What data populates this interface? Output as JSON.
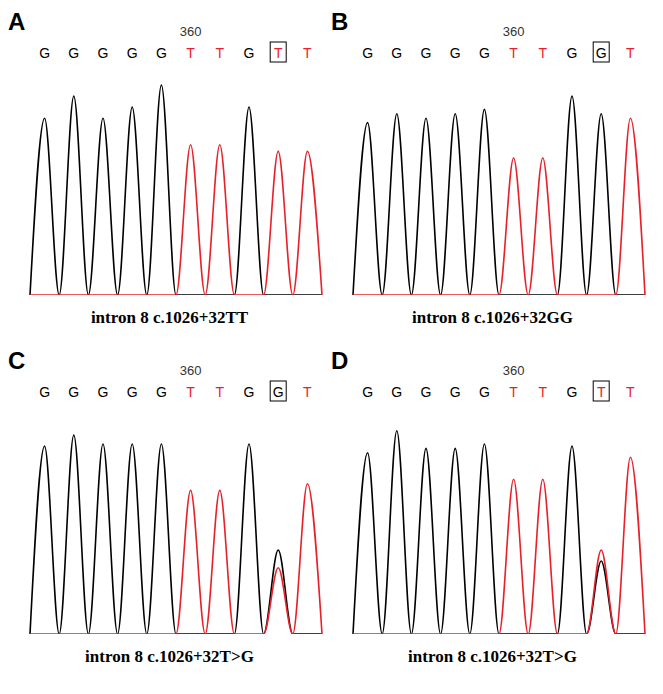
{
  "chart_data": [
    {
      "type": "line",
      "panel_label": "A",
      "title": "intron 8 c.1026+32TT",
      "categories": [
        null,
        "G",
        null,
        "G",
        null,
        "G",
        null,
        "G",
        null,
        "G",
        null,
        "T",
        null,
        "T",
        null,
        "G",
        null,
        "T",
        null,
        "T",
        null
      ],
      "series": [
        {
          "name": "G",
          "color": "#000000",
          "values": [
            0,
            80,
            0,
            90,
            0,
            80,
            0,
            85,
            0,
            95,
            0,
            0,
            0,
            0,
            0,
            85,
            0,
            0,
            0,
            0,
            0
          ]
        },
        {
          "name": "T",
          "color": "#e8202a",
          "values": [
            0,
            0,
            0,
            0,
            0,
            0,
            0,
            0,
            0,
            0,
            0,
            68,
            0,
            68,
            0,
            0,
            0,
            65,
            0,
            65,
            0
          ]
        }
      ],
      "ylim": [
        0,
        100
      ],
      "tick_labels": "x",
      "annotations": [
        {
          "text": "360",
          "at": 11
        }
      ],
      "boxed": 17
    },
    {
      "type": "line",
      "panel_label": "B",
      "title": "intron 8 c.1026+32GG",
      "categories": [
        null,
        "G",
        null,
        "G",
        null,
        "G",
        null,
        "G",
        null,
        "G",
        null,
        "T",
        null,
        "T",
        null,
        "G",
        null,
        "G",
        null,
        "T",
        null
      ],
      "series": [
        {
          "name": "G",
          "color": "#000000",
          "values": [
            0,
            78,
            0,
            82,
            0,
            80,
            0,
            82,
            0,
            84,
            0,
            0,
            0,
            0,
            0,
            90,
            0,
            82,
            0,
            0,
            0
          ]
        },
        {
          "name": "T",
          "color": "#e8202a",
          "values": [
            0,
            0,
            0,
            0,
            0,
            0,
            0,
            0,
            0,
            0,
            0,
            62,
            0,
            62,
            0,
            0,
            0,
            0,
            0,
            80,
            0
          ]
        }
      ],
      "ylim": [
        0,
        100
      ],
      "tick_labels": "x",
      "annotations": [
        {
          "text": "360",
          "at": 11
        }
      ],
      "boxed": 17
    },
    {
      "type": "line",
      "panel_label": "C",
      "title": "intron 8 c.1026+32T>G",
      "categories": [
        null,
        "G",
        null,
        "G",
        null,
        "G",
        null,
        "G",
        null,
        "G",
        null,
        "T",
        null,
        "T",
        null,
        "G",
        null,
        "G",
        null,
        "T",
        null
      ],
      "series": [
        {
          "name": "G",
          "color": "#000000",
          "values": [
            0,
            85,
            0,
            90,
            0,
            86,
            0,
            86,
            0,
            86,
            0,
            0,
            0,
            0,
            0,
            86,
            0,
            38,
            0,
            0,
            0
          ]
        },
        {
          "name": "T",
          "color": "#e8202a",
          "values": [
            0,
            0,
            0,
            0,
            0,
            0,
            0,
            0,
            0,
            0,
            0,
            65,
            0,
            65,
            0,
            0,
            0,
            30,
            0,
            68,
            0
          ]
        }
      ],
      "ylim": [
        0,
        100
      ],
      "tick_labels": "x",
      "annotations": [
        {
          "text": "360",
          "at": 11
        }
      ],
      "boxed": 17
    },
    {
      "type": "line",
      "panel_label": "D",
      "title": "intron 8 c.1026+32T>G",
      "categories": [
        null,
        "G",
        null,
        "G",
        null,
        "G",
        null,
        "G",
        null,
        "G",
        null,
        "T",
        null,
        "T",
        null,
        "G",
        null,
        "T",
        null,
        "T",
        null
      ],
      "series": [
        {
          "name": "G",
          "color": "#000000",
          "values": [
            0,
            82,
            0,
            92,
            0,
            84,
            0,
            84,
            0,
            86,
            0,
            0,
            0,
            0,
            0,
            85,
            0,
            33,
            0,
            0,
            0
          ]
        },
        {
          "name": "T",
          "color": "#e8202a",
          "values": [
            0,
            0,
            0,
            0,
            0,
            0,
            0,
            0,
            0,
            0,
            0,
            70,
            0,
            70,
            0,
            0,
            0,
            38,
            0,
            80,
            0
          ]
        }
      ],
      "ylim": [
        0,
        100
      ],
      "tick_labels": "x",
      "annotations": [
        {
          "text": "360",
          "at": 11
        }
      ],
      "boxed": 17
    }
  ]
}
